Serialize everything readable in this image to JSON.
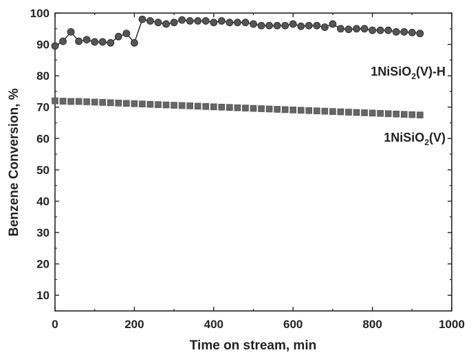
{
  "chart_data": {
    "type": "line",
    "xlabel": "Time on stream, min",
    "ylabel": "Benzene Conversion, %",
    "xlim": [
      0,
      1000
    ],
    "ylim": [
      5,
      100
    ],
    "x_ticks": [
      0,
      200,
      400,
      600,
      800,
      1000
    ],
    "y_ticks": [
      10,
      20,
      30,
      40,
      50,
      60,
      70,
      80,
      90,
      100
    ],
    "grid": false,
    "series": [
      {
        "name": "1NiSiO2(V)-H",
        "marker": "circle",
        "connected": true,
        "color": "#555555",
        "x": [
          0,
          20,
          40,
          60,
          80,
          100,
          120,
          140,
          160,
          180,
          200,
          220,
          240,
          260,
          280,
          300,
          320,
          340,
          360,
          380,
          400,
          420,
          440,
          460,
          480,
          500,
          520,
          540,
          560,
          580,
          600,
          620,
          640,
          660,
          680,
          700,
          720,
          740,
          760,
          780,
          800,
          820,
          840,
          860,
          880,
          900,
          920
        ],
        "y": [
          89.5,
          91.0,
          94.0,
          91.0,
          91.5,
          90.8,
          90.8,
          90.5,
          92.5,
          93.5,
          90.5,
          98.0,
          97.5,
          97.0,
          96.5,
          97.0,
          97.8,
          97.5,
          97.5,
          97.5,
          97.0,
          97.5,
          97.0,
          97.0,
          97.0,
          96.5,
          96.0,
          96.0,
          96.0,
          96.0,
          96.5,
          95.8,
          96.0,
          96.0,
          95.5,
          96.5,
          95.0,
          94.8,
          95.0,
          95.0,
          94.5,
          94.5,
          94.5,
          94.0,
          94.0,
          93.8,
          93.5
        ]
      },
      {
        "name": "1NiSiO2(V)",
        "marker": "square",
        "connected": false,
        "color": "#666666",
        "x": [
          0,
          20,
          40,
          60,
          80,
          100,
          120,
          140,
          160,
          180,
          200,
          220,
          240,
          260,
          280,
          300,
          320,
          340,
          360,
          380,
          400,
          420,
          440,
          460,
          480,
          500,
          520,
          540,
          560,
          580,
          600,
          620,
          640,
          660,
          680,
          700,
          720,
          740,
          760,
          780,
          800,
          820,
          840,
          860,
          880,
          900,
          920
        ],
        "y": [
          72.0,
          71.9,
          71.8,
          71.8,
          71.7,
          71.6,
          71.5,
          71.4,
          71.3,
          71.2,
          71.1,
          71.0,
          70.9,
          70.8,
          70.7,
          70.6,
          70.5,
          70.4,
          70.3,
          70.2,
          70.1,
          70.0,
          69.9,
          69.8,
          69.7,
          69.6,
          69.5,
          69.4,
          69.3,
          69.2,
          69.1,
          69.0,
          68.9,
          68.8,
          68.7,
          68.6,
          68.5,
          68.4,
          68.3,
          68.2,
          68.1,
          68.0,
          67.9,
          67.8,
          67.7,
          67.6,
          67.5
        ]
      }
    ],
    "annotations": [
      {
        "prefix": "1NiSiO",
        "sub": "2",
        "suffix": "(V)-H"
      },
      {
        "prefix": "1NiSiO",
        "sub": "2",
        "suffix": "(V)"
      }
    ]
  }
}
